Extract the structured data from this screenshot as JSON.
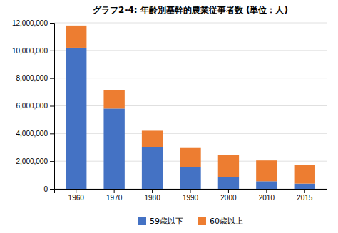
{
  "chart_data": {
    "type": "bar",
    "stacked": true,
    "title": "グラフ2-4: 年齢別基幹的農業従事者数 (単位：人)",
    "categories": [
      "1960",
      "1970",
      "1980",
      "1990",
      "2000",
      "2010",
      "2015"
    ],
    "series": [
      {
        "name": "59歳以下",
        "color": "#4472C4",
        "values": [
          10200000,
          5800000,
          3000000,
          1550000,
          850000,
          550000,
          380000
        ]
      },
      {
        "name": "60歳以上",
        "color": "#ED7D31",
        "values": [
          1600000,
          1350000,
          1200000,
          1400000,
          1600000,
          1500000,
          1350000
        ]
      }
    ],
    "ylim": [
      0,
      12000000
    ],
    "yticks": [
      0,
      {
        "value": 2000000,
        "label": "2,000,000"
      },
      {
        "value": 4000000,
        "label": "4,000,000"
      },
      {
        "value": 6000000,
        "label": "6,000,000"
      },
      {
        "value": 8000000,
        "label": "8,000,000"
      },
      {
        "value": 10000000,
        "label": "10,000,000"
      },
      {
        "value": 12000000,
        "label": "12,000,000"
      }
    ],
    "grid": true,
    "legend": "bottom"
  }
}
